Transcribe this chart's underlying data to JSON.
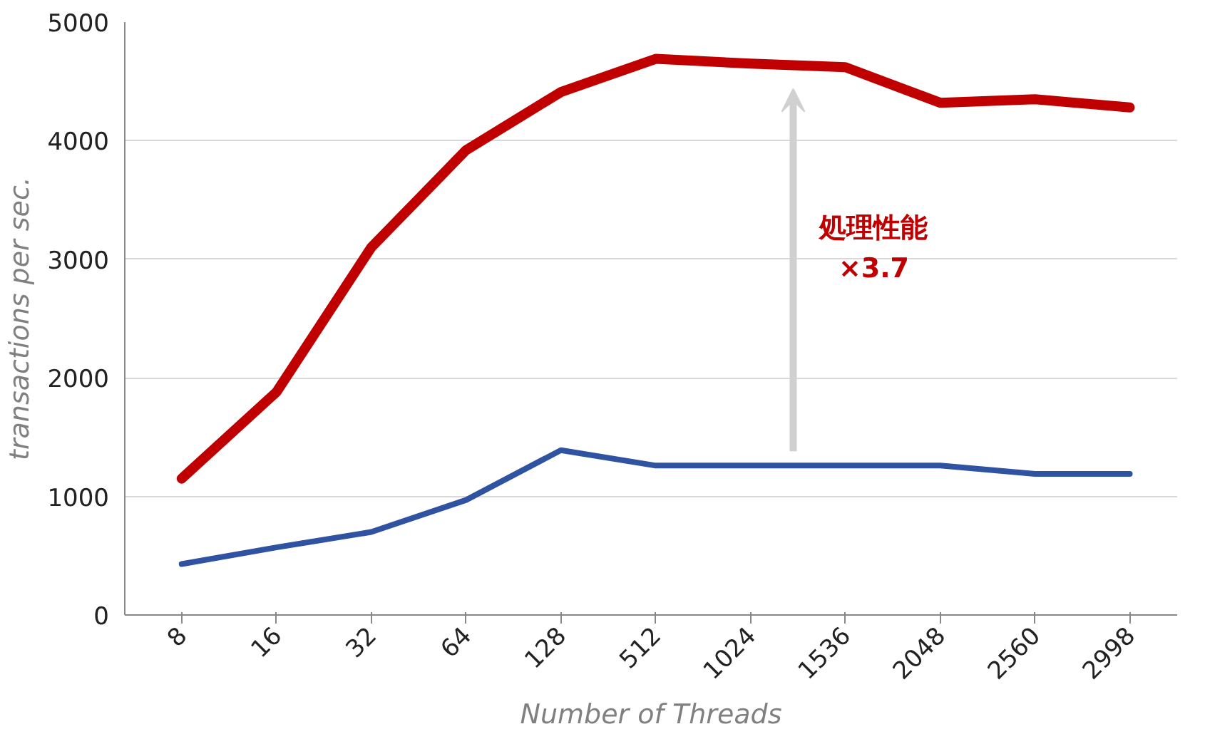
{
  "chart_data": {
    "type": "line",
    "xlabel": "Number of Threads",
    "ylabel": "transactions per sec.",
    "categories": [
      "8",
      "16",
      "32",
      "64",
      "128",
      "512",
      "1024",
      "1536",
      "2048",
      "2560",
      "2998"
    ],
    "series": [
      {
        "color": "#c00000",
        "values": [
          1150,
          1880,
          3100,
          3920,
          4410,
          4690,
          4650,
          4620,
          4320,
          4350,
          4280
        ]
      },
      {
        "color": "#2f53a0",
        "values": [
          430,
          570,
          700,
          970,
          1390,
          1260,
          1260,
          1260,
          1260,
          1190,
          1190
        ]
      }
    ],
    "ylim": [
      0,
      5000
    ],
    "yticks": [
      0,
      1000,
      2000,
      3000,
      4000,
      5000
    ],
    "grid": "y",
    "marker": "none",
    "line_style": "solid",
    "annotations": [
      "処理性能\n×3.7"
    ]
  }
}
